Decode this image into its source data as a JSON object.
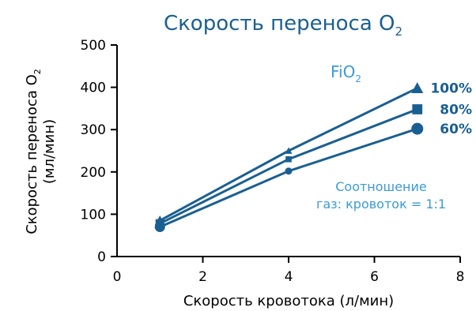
{
  "chart_data": {
    "type": "line",
    "title": "Скорость переноса O",
    "title_sub": "2",
    "xlabel": "Скорость кровотока (л/мин)",
    "ylabel_line1": "Скорость переноса O",
    "ylabel_sub": "2",
    "ylabel_line2": "(мл/мин)",
    "xlim": [
      0,
      8
    ],
    "ylim": [
      0,
      500
    ],
    "x_ticks": [
      "0",
      "2",
      "4",
      "6",
      "8"
    ],
    "y_ticks": [
      "0",
      "100",
      "200",
      "300",
      "400",
      "500"
    ],
    "x": [
      1,
      4,
      7
    ],
    "series": [
      {
        "name": "100%",
        "marker": "triangle",
        "values": [
          85,
          250,
          398
        ]
      },
      {
        "name": "80%",
        "marker": "square",
        "values": [
          78,
          230,
          348
        ]
      },
      {
        "name": "60%",
        "marker": "circle",
        "values": [
          70,
          202,
          302
        ]
      }
    ],
    "legend_title": "FiO",
    "legend_title_sub": "2",
    "annotation_line1": "Соотношение",
    "annotation_line2": "газ: кровоток = 1:1",
    "colors": {
      "line": "#1a5f91",
      "title": "#1a5f91",
      "legend_title": "#3a9ad9",
      "annotation": "#3a9ad9",
      "axis": "#000000"
    },
    "grid": false
  }
}
